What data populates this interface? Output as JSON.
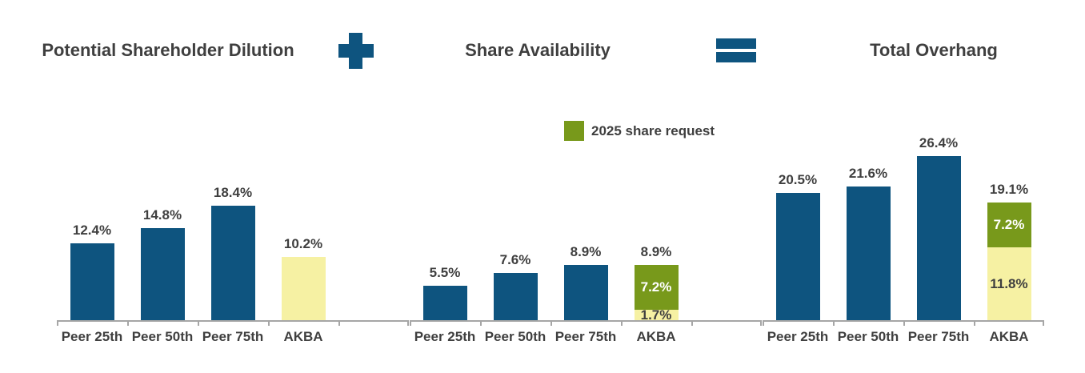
{
  "page": {
    "background": "#FFFFFF"
  },
  "header": {
    "sections": [
      {
        "title": "Potential Shareholder Dilution"
      },
      {
        "title": "Share Availability"
      },
      {
        "title": "Total Overhang"
      }
    ],
    "operators": [
      {
        "symbol": "plus"
      },
      {
        "symbol": "equals"
      }
    ]
  },
  "legend": {
    "label": "2025 share request",
    "swatch_color": "#78991B",
    "position": "top-center"
  },
  "colors": {
    "blue": "#0E547F",
    "green": "#78991B",
    "yellow": "#F6F1A3",
    "axis": "#A6A6A6",
    "text": "#3F3F3F"
  },
  "chart_data": [
    {
      "type": "bar",
      "title": "Potential Shareholder Dilution",
      "categories": [
        "Peer 25th",
        "Peer 50th",
        "Peer 75th",
        "AKBA"
      ],
      "value_unit": "%",
      "ylim": [
        0,
        28
      ],
      "grid": false,
      "bars": [
        {
          "category": "Peer 25th",
          "total": 12.4,
          "total_label": "12.4%",
          "segments": [
            {
              "value": 12.4,
              "color": "blue"
            }
          ]
        },
        {
          "category": "Peer 50th",
          "total": 14.8,
          "total_label": "14.8%",
          "segments": [
            {
              "value": 14.8,
              "color": "blue"
            }
          ]
        },
        {
          "category": "Peer 75th",
          "total": 18.4,
          "total_label": "18.4%",
          "segments": [
            {
              "value": 18.4,
              "color": "blue"
            }
          ]
        },
        {
          "category": "AKBA",
          "total": 10.2,
          "total_label": "10.2%",
          "segments": [
            {
              "value": 10.2,
              "color": "yellow"
            }
          ]
        }
      ]
    },
    {
      "type": "stacked-bar",
      "title": "Share Availability",
      "categories": [
        "Peer 25th",
        "Peer 50th",
        "Peer 75th",
        "AKBA"
      ],
      "value_unit": "%",
      "ylim": [
        0,
        28
      ],
      "grid": false,
      "bars": [
        {
          "category": "Peer 25th",
          "total": 5.5,
          "total_label": "5.5%",
          "segments": [
            {
              "value": 5.5,
              "color": "blue"
            }
          ]
        },
        {
          "category": "Peer 50th",
          "total": 7.6,
          "total_label": "7.6%",
          "segments": [
            {
              "value": 7.6,
              "color": "blue"
            }
          ]
        },
        {
          "category": "Peer 75th",
          "total": 8.9,
          "total_label": "8.9%",
          "segments": [
            {
              "value": 8.9,
              "color": "blue"
            }
          ]
        },
        {
          "category": "AKBA",
          "total": 8.9,
          "total_label": "8.9%",
          "segments": [
            {
              "value": 1.7,
              "color": "yellow",
              "label": "1.7%",
              "label_color": "dark"
            },
            {
              "value": 7.2,
              "color": "green",
              "label": "7.2%",
              "label_color": "white"
            }
          ]
        }
      ]
    },
    {
      "type": "stacked-bar",
      "title": "Total Overhang",
      "categories": [
        "Peer 25th",
        "Peer 50th",
        "Peer 75th",
        "AKBA"
      ],
      "value_unit": "%",
      "ylim": [
        0,
        28
      ],
      "grid": false,
      "bars": [
        {
          "category": "Peer 25th",
          "total": 20.5,
          "total_label": "20.5%",
          "segments": [
            {
              "value": 20.5,
              "color": "blue"
            }
          ]
        },
        {
          "category": "Peer 50th",
          "total": 21.6,
          "total_label": "21.6%",
          "segments": [
            {
              "value": 21.6,
              "color": "blue"
            }
          ]
        },
        {
          "category": "Peer 75th",
          "total": 26.4,
          "total_label": "26.4%",
          "segments": [
            {
              "value": 26.4,
              "color": "blue"
            }
          ]
        },
        {
          "category": "AKBA",
          "total": 19.1,
          "total_label": "19.1%",
          "segments": [
            {
              "value": 11.8,
              "color": "yellow",
              "label": "11.8%",
              "label_color": "dark"
            },
            {
              "value": 7.2,
              "color": "green",
              "label": "7.2%",
              "label_color": "white"
            }
          ]
        }
      ]
    }
  ]
}
